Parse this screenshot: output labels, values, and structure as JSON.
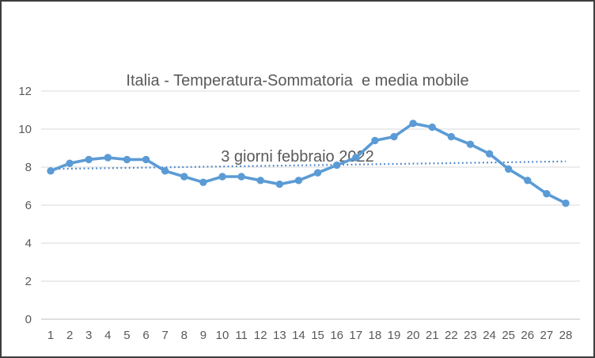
{
  "chart": {
    "title_line1": "Italia - Temperatura-Sommatoria  e media mobile",
    "title_line2": "3 giorni febbraio 2022",
    "title_color": "#595959",
    "axis_label_color": "#595959",
    "gridline_color": "#d9d9d9",
    "axis_line_color": "#bfbfbf",
    "background": "#ffffff",
    "border_color": "#3d3d3d"
  },
  "chart_data": {
    "type": "line",
    "title": "Italia - Temperatura-Sommatoria  e media mobile 3 giorni febbraio 2022",
    "x": [
      1,
      2,
      3,
      4,
      5,
      6,
      7,
      8,
      9,
      10,
      11,
      12,
      13,
      14,
      15,
      16,
      17,
      18,
      19,
      20,
      21,
      22,
      23,
      24,
      25,
      26,
      27,
      28
    ],
    "series": [
      {
        "name": "Temperatura-Sommatoria",
        "color": "#5b9bd5",
        "marker": "circle",
        "values": [
          7.8,
          8.2,
          8.4,
          8.5,
          8.4,
          8.4,
          7.8,
          7.5,
          7.2,
          7.5,
          7.5,
          7.3,
          7.1,
          7.3,
          7.7,
          8.1,
          8.5,
          9.4,
          9.6,
          10.3,
          10.1,
          9.6,
          9.2,
          8.7,
          7.9,
          7.3,
          6.6,
          6.1
        ]
      }
    ],
    "trendline": {
      "name": "media mobile 3 giorni",
      "style": "dotted",
      "color": "#4a86c8",
      "start_value": 7.9,
      "end_value": 8.3
    },
    "xlabel": "",
    "ylabel": "",
    "ylim": [
      0,
      12
    ],
    "yticks": [
      0,
      2,
      4,
      6,
      8,
      10,
      12
    ],
    "grid": true,
    "legend": false
  }
}
